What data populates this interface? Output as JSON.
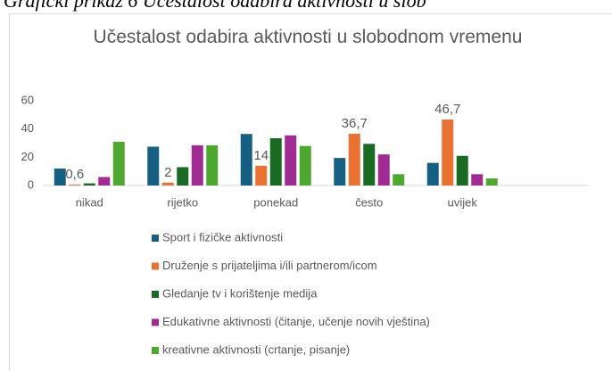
{
  "caption": "Grafički prikaz 6 Učestalost odabira aktivnosti u slob",
  "chart_data": {
    "type": "bar",
    "title": "Učestalost odabira aktivnosti u slobodnom vremenu",
    "categories": [
      "nikad",
      "rijetko",
      "ponekad",
      "često",
      "uvijek"
    ],
    "series": [
      {
        "name": "Sport i fizičke aktivnosti",
        "color": "#156082",
        "values": [
          12,
          27.5,
          36.5,
          19.5,
          16
        ]
      },
      {
        "name": "Druženje s prijateljima i/ili partnerom/icom",
        "color": "#e97132",
        "values": [
          0.6,
          2,
          14,
          36.7,
          46.7
        ],
        "value_labels": [
          "0,6",
          "2",
          "14",
          "36,7",
          "46,7"
        ]
      },
      {
        "name": "Gledanje tv i korištenje medija",
        "color": "#196b24",
        "values": [
          1.5,
          13,
          33.5,
          29.5,
          21
        ]
      },
      {
        "name": "Edukativne aktivnosti (čitanje, učenje novih vještina)",
        "color": "#a02b93",
        "values": [
          6,
          28.5,
          35.5,
          22,
          8
        ]
      },
      {
        "name": "kreativne aktivnosti (crtanje, pisanje)",
        "color": "#4ea72e",
        "values": [
          31,
          28.5,
          28,
          8,
          5
        ]
      }
    ],
    "ylim": [
      0,
      60
    ],
    "yticks": [
      0,
      20,
      40,
      60
    ],
    "grid": false,
    "legend": "bottom"
  }
}
